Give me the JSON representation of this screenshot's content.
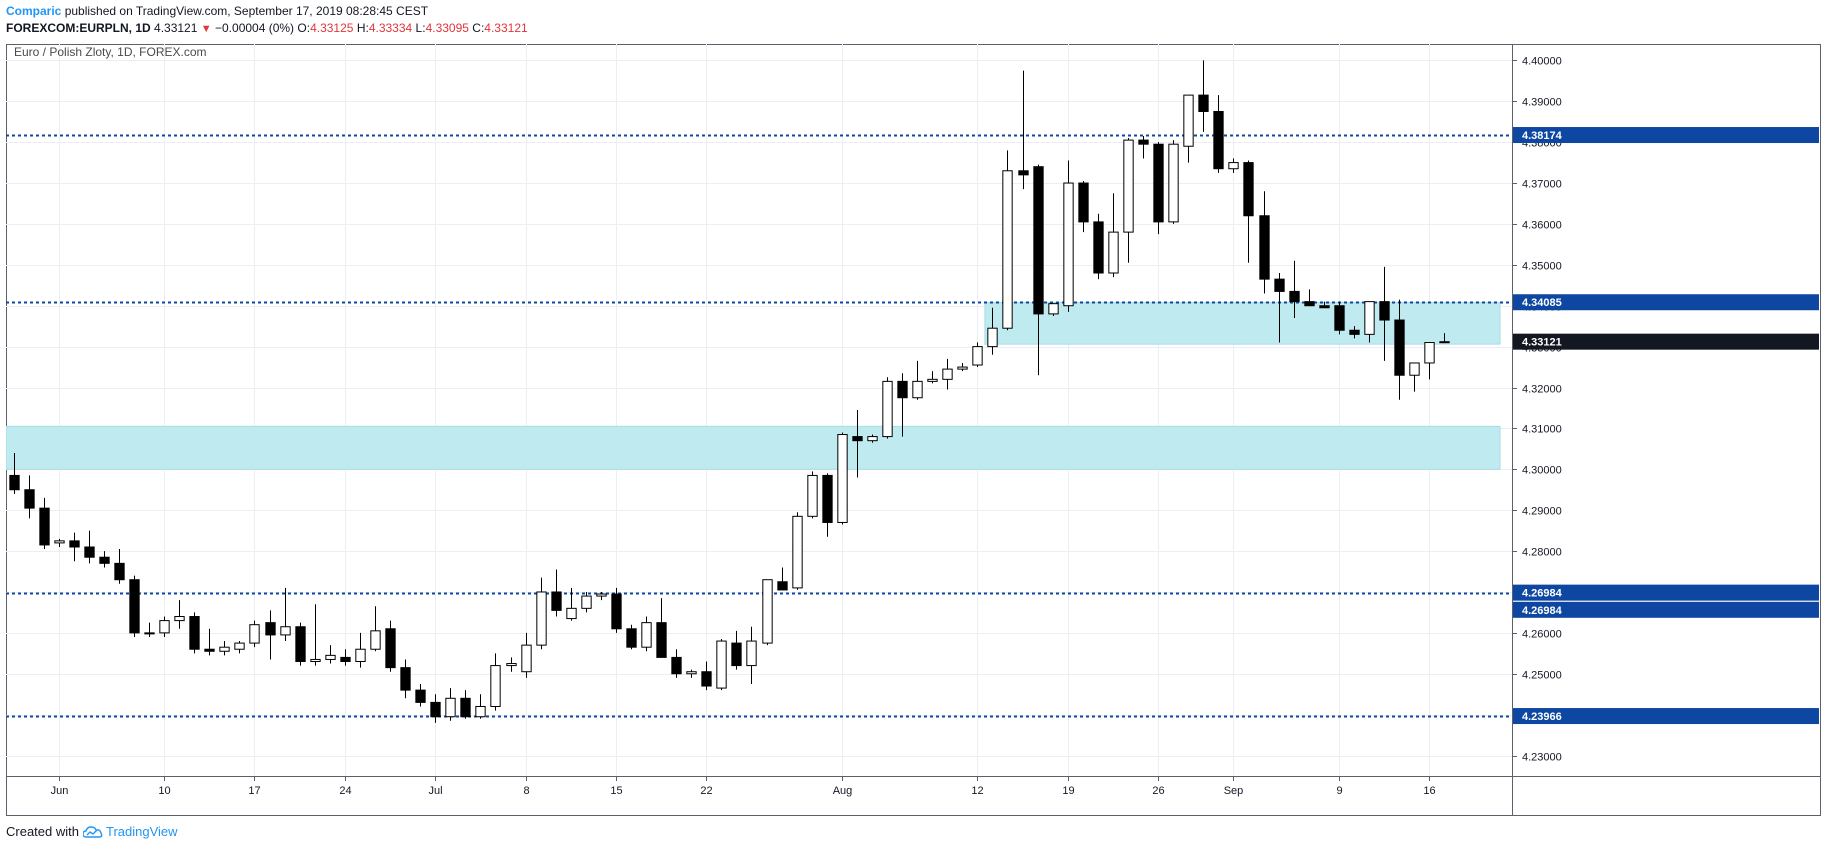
{
  "header": {
    "publisher": "Comparic",
    "published_text": "published on TradingView.com, September 17, 2019 08:28:45 CEST",
    "symbol": "FOREXCOM:EURPLN, 1D",
    "last": "4.33121",
    "change": "−0.00004 (0%)",
    "o_label": "O:",
    "o_value": "4.33125",
    "h_label": "H:",
    "h_value": "4.33334",
    "l_label": "L:",
    "l_value": "4.33095",
    "c_label": "C:",
    "c_value": "4.33121"
  },
  "footer": {
    "created_with": "Created with",
    "brand": "TradingView"
  },
  "colors": {
    "up_fill": "#ffffff",
    "down_fill": "#000000",
    "zone": "#bfeaf0",
    "level_line": "#0d47a1",
    "grid": "#e9eff5",
    "price_tag": "#131722"
  },
  "chart_data": {
    "type": "candlestick",
    "title": "Euro / Polish Zloty, 1D, FOREX.com",
    "ylim": [
      4.225,
      4.404
    ],
    "y_ticks": [
      4.23,
      4.24,
      4.25,
      4.26,
      4.27,
      4.28,
      4.29,
      4.3,
      4.31,
      4.32,
      4.33,
      4.34,
      4.35,
      4.36,
      4.37,
      4.38,
      4.39,
      4.4
    ],
    "y_tick_labels": [
      "4.23000",
      "4.24000",
      "4.25000",
      "4.26000",
      "4.27000",
      "4.28000",
      "4.29000",
      "4.30000",
      "4.31000",
      "4.32000",
      "4.33000",
      "4.34000",
      "4.35000",
      "4.36000",
      "4.37000",
      "4.38000",
      "4.39000",
      "4.40000"
    ],
    "x_tick_labels": [
      {
        "label": "Jun",
        "bar": 3
      },
      {
        "label": "10",
        "bar": 10
      },
      {
        "label": "17",
        "bar": 16
      },
      {
        "label": "24",
        "bar": 22
      },
      {
        "label": "Jul",
        "bar": 28
      },
      {
        "label": "8",
        "bar": 34
      },
      {
        "label": "15",
        "bar": 40
      },
      {
        "label": "22",
        "bar": 46
      },
      {
        "label": "Aug",
        "bar": 55
      },
      {
        "label": "12",
        "bar": 64
      },
      {
        "label": "19",
        "bar": 70
      },
      {
        "label": "26",
        "bar": 76
      },
      {
        "label": "Sep",
        "bar": 81
      },
      {
        "label": "9",
        "bar": 88
      },
      {
        "label": "16",
        "bar": 94
      }
    ],
    "bar_count": 100,
    "horizontal_levels": [
      {
        "value": 4.38174,
        "label": "4.38174"
      },
      {
        "value": 4.34085,
        "label": "4.34085"
      },
      {
        "value": 4.26984,
        "label": "4.26984"
      },
      {
        "value": 4.23966,
        "label": "4.23966"
      }
    ],
    "extra_level_tag": "4.26984",
    "current_price_tag": {
      "value": 4.33121,
      "label": "4.33121"
    },
    "zones": [
      {
        "from": 4.3306,
        "to": 4.3408,
        "start_bar": 65,
        "end_bar": 99
      },
      {
        "from": 4.3,
        "to": 4.3105,
        "start_bar": 0,
        "end_bar": 99
      }
    ],
    "candles": [
      [
        4.2985,
        4.304,
        4.294,
        4.295
      ],
      [
        4.295,
        4.2985,
        4.288,
        4.2905
      ],
      [
        4.2905,
        4.293,
        4.2805,
        4.2815
      ],
      [
        4.282,
        4.283,
        4.281,
        4.2825
      ],
      [
        4.2825,
        4.2845,
        4.2775,
        4.281
      ],
      [
        4.281,
        4.285,
        4.277,
        4.2785
      ],
      [
        4.2785,
        4.28,
        4.276,
        4.277
      ],
      [
        4.277,
        4.2805,
        4.272,
        4.273
      ],
      [
        4.273,
        4.274,
        4.259,
        4.26
      ],
      [
        4.26,
        4.2625,
        4.259,
        4.26
      ],
      [
        4.26,
        4.264,
        4.259,
        4.263
      ],
      [
        4.263,
        4.268,
        4.261,
        4.264
      ],
      [
        4.264,
        4.265,
        4.255,
        4.256
      ],
      [
        4.256,
        4.261,
        4.2545,
        4.2555
      ],
      [
        4.2555,
        4.258,
        4.2545,
        4.2565
      ],
      [
        4.256,
        4.258,
        4.255,
        4.2575
      ],
      [
        4.2575,
        4.263,
        4.2565,
        4.262
      ],
      [
        4.2625,
        4.2655,
        4.2535,
        4.2595
      ],
      [
        4.2595,
        4.271,
        4.258,
        4.2615
      ],
      [
        4.2615,
        4.2625,
        4.252,
        4.253
      ],
      [
        4.253,
        4.267,
        4.252,
        4.2535
      ],
      [
        4.2535,
        4.257,
        4.2525,
        4.2545
      ],
      [
        4.254,
        4.256,
        4.252,
        4.253
      ],
      [
        4.253,
        4.26,
        4.2515,
        4.256
      ],
      [
        4.256,
        4.2665,
        4.2555,
        4.2605
      ],
      [
        4.261,
        4.263,
        4.2505,
        4.2515
      ],
      [
        4.2515,
        4.2535,
        4.244,
        4.246
      ],
      [
        4.246,
        4.2475,
        4.242,
        4.243
      ],
      [
        4.243,
        4.245,
        4.238,
        4.2395
      ],
      [
        4.2395,
        4.2465,
        4.2385,
        4.244
      ],
      [
        4.244,
        4.246,
        4.239,
        4.2395
      ],
      [
        4.2395,
        4.245,
        4.239,
        4.242
      ],
      [
        4.242,
        4.255,
        4.241,
        4.252
      ],
      [
        4.252,
        4.254,
        4.2505,
        4.2525
      ],
      [
        4.2505,
        4.26,
        4.249,
        4.257
      ],
      [
        4.257,
        4.2735,
        4.256,
        4.27
      ],
      [
        4.27,
        4.2755,
        4.264,
        4.2655
      ],
      [
        4.2635,
        4.271,
        4.263,
        4.266
      ],
      [
        4.266,
        4.27,
        4.265,
        4.269
      ],
      [
        4.269,
        4.27,
        4.268,
        4.2695
      ],
      [
        4.2695,
        4.271,
        4.26,
        4.261
      ],
      [
        4.261,
        4.262,
        4.256,
        4.2565
      ],
      [
        4.2565,
        4.264,
        4.2555,
        4.2625
      ],
      [
        4.2625,
        4.2685,
        4.254,
        4.254
      ],
      [
        4.254,
        4.256,
        4.249,
        4.25
      ],
      [
        4.25,
        4.251,
        4.249,
        4.2505
      ],
      [
        4.2505,
        4.253,
        4.246,
        4.247
      ],
      [
        4.2465,
        4.2585,
        4.246,
        4.258
      ],
      [
        4.2575,
        4.2605,
        4.251,
        4.252
      ],
      [
        4.252,
        4.2615,
        4.2475,
        4.258
      ],
      [
        4.2575,
        4.272,
        4.257,
        4.273
      ],
      [
        4.2725,
        4.276,
        4.2705,
        4.2705
      ],
      [
        4.271,
        4.2895,
        4.2705,
        4.2885
      ],
      [
        4.2885,
        4.2995,
        4.288,
        4.2985
      ],
      [
        4.2985,
        4.299,
        4.2835,
        4.287
      ],
      [
        4.287,
        4.309,
        4.2865,
        4.3085
      ],
      [
        4.308,
        4.3145,
        4.298,
        4.307
      ],
      [
        4.307,
        4.3085,
        4.3065,
        4.308
      ],
      [
        4.308,
        4.3225,
        4.3075,
        4.3215
      ],
      [
        4.3215,
        4.3235,
        4.308,
        4.3175
      ],
      [
        4.3175,
        4.3265,
        4.317,
        4.3215
      ],
      [
        4.3215,
        4.324,
        4.321,
        4.322
      ],
      [
        4.322,
        4.327,
        4.3195,
        4.3245
      ],
      [
        4.3245,
        4.326,
        4.324,
        4.325
      ],
      [
        4.3255,
        4.331,
        4.325,
        4.33
      ],
      [
        4.33,
        4.3395,
        4.328,
        4.3345
      ],
      [
        4.3345,
        4.378,
        4.334,
        4.373
      ],
      [
        4.373,
        4.3975,
        4.3685,
        4.372
      ],
      [
        4.374,
        4.3745,
        4.323,
        4.338
      ],
      [
        4.338,
        4.3405,
        4.3375,
        4.3405
      ],
      [
        4.34,
        4.3755,
        4.3385,
        4.37
      ],
      [
        4.37,
        4.3705,
        4.358,
        4.3605
      ],
      [
        4.3605,
        4.3625,
        4.3465,
        4.348
      ],
      [
        4.348,
        4.3675,
        4.347,
        4.358
      ],
      [
        4.358,
        4.381,
        4.3505,
        4.3805
      ],
      [
        4.3805,
        4.3815,
        4.376,
        4.3795
      ],
      [
        4.3795,
        4.38,
        4.3575,
        4.3605
      ],
      [
        4.3605,
        4.3805,
        4.36,
        4.3795
      ],
      [
        4.379,
        4.391,
        4.375,
        4.3915
      ],
      [
        4.3915,
        4.4,
        4.3825,
        4.3875
      ],
      [
        4.3875,
        4.3915,
        4.3725,
        4.3735
      ],
      [
        4.3735,
        4.376,
        4.3725,
        4.375
      ],
      [
        4.375,
        4.3755,
        4.3505,
        4.362
      ],
      [
        4.362,
        4.368,
        4.343,
        4.3465
      ],
      [
        4.3465,
        4.348,
        4.331,
        4.3435
      ],
      [
        4.3435,
        4.351,
        4.337,
        4.341
      ],
      [
        4.341,
        4.344,
        4.34,
        4.34
      ],
      [
        4.34,
        4.341,
        4.3395,
        4.3395
      ],
      [
        4.34,
        4.341,
        4.333,
        4.334
      ],
      [
        4.334,
        4.335,
        4.332,
        4.333
      ],
      [
        4.333,
        4.341,
        4.331,
        4.341
      ],
      [
        4.341,
        4.3495,
        4.3265,
        4.3365
      ],
      [
        4.3365,
        4.3415,
        4.317,
        4.323
      ],
      [
        4.323,
        4.326,
        4.319,
        4.326
      ],
      [
        4.326,
        4.331,
        4.322,
        4.331
      ],
      [
        4.3312,
        4.3333,
        4.3309,
        4.3312
      ]
    ]
  }
}
